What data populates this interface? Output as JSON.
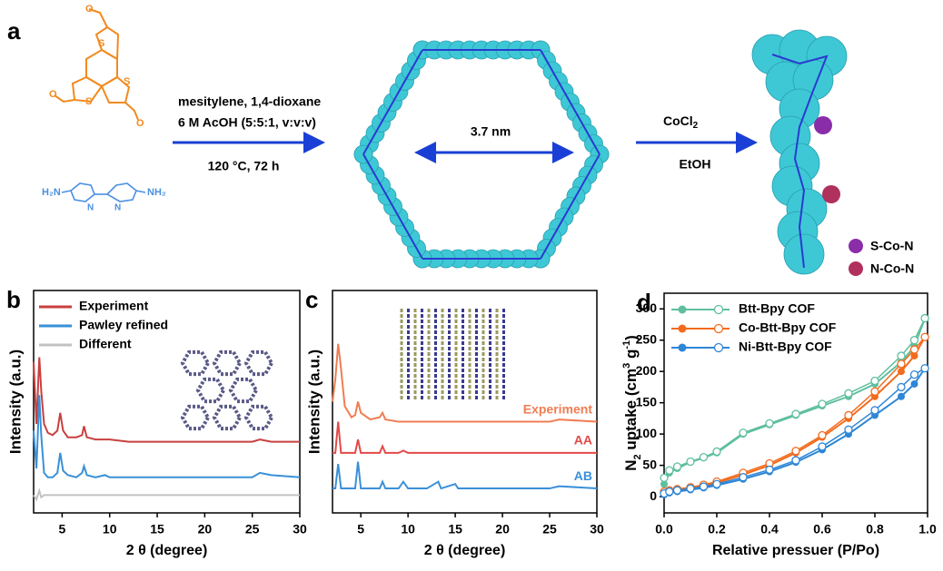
{
  "diagram": {
    "label": "a",
    "conditions": [
      "mesitylene, 1,4-dioxane",
      "6 M AcOH (5:5:1, v:v:v)",
      "120 °C, 72 h"
    ],
    "pore_size": "3.7 nm",
    "reagent": {
      "text": "CoCl",
      "sub": "2"
    },
    "solvent": "EtOH",
    "legend": [
      "S-Co-N",
      "N-Co-N"
    ],
    "aldehyde_atoms": [
      "O",
      "O",
      "O",
      "S",
      "S",
      "S"
    ],
    "amine_atoms": [
      "H₂N",
      "NH₂",
      "N",
      "N"
    ]
  },
  "chart_data": [
    {
      "type": "line",
      "label": "b",
      "x_label": "2 θ (degree)",
      "y_label": "Intensity (a.u.)",
      "x": [
        2,
        2.3,
        2.6,
        2.8,
        3.1,
        3.5,
        4,
        4.5,
        4.8,
        5.1,
        5.6,
        6.5,
        7.1,
        7.3,
        7.6,
        8.5,
        9.5,
        10,
        12,
        15,
        20,
        25,
        25.8,
        27,
        30
      ],
      "series": [
        {
          "name": "Experiment",
          "color": "#c8403e",
          "values": [
            68,
            40,
            70,
            55,
            40,
            36,
            35,
            37,
            45,
            37,
            34,
            34,
            35,
            39,
            34,
            33,
            33,
            33,
            32,
            32,
            32,
            32,
            33,
            32,
            32
          ]
        },
        {
          "name": "Pawley refined",
          "color": "#3a90d8",
          "values": [
            37,
            20,
            53,
            35,
            18,
            16,
            16,
            18,
            27,
            19,
            17,
            16,
            18,
            21,
            17,
            16,
            17,
            16,
            16,
            16,
            16,
            16,
            18,
            17,
            16
          ]
        },
        {
          "name": "Different",
          "color": "#c2c2c2",
          "values": [
            8,
            6,
            10,
            7,
            8,
            8,
            8,
            8,
            8,
            8,
            8,
            8,
            8,
            8,
            8,
            8,
            8,
            8,
            8,
            8,
            8,
            8,
            8,
            8,
            8
          ]
        }
      ],
      "xlim": [
        2,
        30
      ],
      "xticks": [
        5,
        10,
        15,
        20,
        25,
        30
      ],
      "ylim": [
        0,
        100
      ],
      "legend": "upper left"
    },
    {
      "type": "line",
      "label": "c",
      "x_label": "2 θ (degree)",
      "y_label": "Intensity (a.u.)",
      "x": [
        2,
        2.3,
        2.6,
        2.9,
        3.3,
        4,
        4.4,
        4.7,
        5,
        6,
        7,
        7.3,
        7.6,
        9,
        9.5,
        10,
        12,
        13.2,
        13.5,
        15,
        15.3,
        20,
        25,
        26,
        30
      ],
      "series": [
        {
          "name": "Experiment",
          "color": "#f07d52",
          "values": [
            50,
            60,
            76,
            65,
            48,
            43,
            44,
            50,
            45,
            42,
            43,
            45,
            42,
            41,
            41,
            41,
            41,
            41,
            41,
            41,
            41,
            41,
            41,
            42,
            41
          ]
        },
        {
          "name": "AA",
          "color": "#e24a48",
          "values": [
            27,
            27,
            41,
            27,
            27,
            27,
            27,
            33,
            27,
            27,
            27,
            30,
            27,
            27,
            28,
            27,
            27,
            27,
            27,
            27,
            27,
            27,
            27,
            27,
            27
          ]
        },
        {
          "name": "AB",
          "color": "#3a90d8",
          "values": [
            11,
            11,
            22,
            11,
            11,
            11,
            11,
            23,
            11,
            11,
            11,
            14,
            11,
            11,
            14,
            11,
            11,
            14,
            11,
            13,
            11,
            11,
            11,
            12,
            11
          ]
        }
      ],
      "xlim": [
        2,
        30
      ],
      "xticks": [
        5,
        10,
        15,
        20,
        25,
        30
      ],
      "ylim": [
        0,
        100
      ],
      "legend": "series end"
    },
    {
      "type": "isotherm",
      "label": "d",
      "x_label": "Relative pressuer (P/Po)",
      "y_label": [
        "N",
        "2",
        " uptake (cm",
        "3",
        " g",
        "-1",
        ")"
      ],
      "x": [
        0,
        0.02,
        0.05,
        0.1,
        0.15,
        0.2,
        0.3,
        0.4,
        0.5,
        0.6,
        0.7,
        0.8,
        0.9,
        0.95,
        0.99
      ],
      "series": [
        {
          "name": "Btt-Bpy COF",
          "color": "#5fbf9f",
          "values": [
            20,
            38,
            45,
            55,
            62,
            70,
            100,
            115,
            130,
            145,
            160,
            180,
            215,
            240,
            285
          ],
          "desorption_values": [
            30,
            42,
            48,
            56,
            63,
            72,
            102,
            117,
            132,
            148,
            165,
            185,
            225,
            250,
            285
          ]
        },
        {
          "name": "Co-Btt-Bpy COF",
          "color": "#f26b1d",
          "values": [
            5,
            8,
            10,
            13,
            17,
            22,
            35,
            50,
            70,
            95,
            125,
            160,
            200,
            225,
            255
          ],
          "desorption_values": [
            8,
            10,
            12,
            15,
            19,
            24,
            38,
            53,
            73,
            98,
            130,
            168,
            212,
            235,
            255
          ]
        },
        {
          "name": "Ni-Btt-Bpy COF",
          "color": "#2e86d6",
          "values": [
            3,
            6,
            8,
            11,
            14,
            18,
            28,
            40,
            55,
            75,
            100,
            130,
            160,
            180,
            205
          ],
          "desorption_values": [
            5,
            8,
            10,
            13,
            16,
            20,
            31,
            43,
            58,
            80,
            107,
            138,
            175,
            195,
            205
          ]
        }
      ],
      "xlim": [
        0,
        1
      ],
      "xticks": [
        {
          "value": 0,
          "label": "0.0"
        },
        0.2,
        0.4,
        0.6,
        0.8,
        {
          "value": 1,
          "label": "1.0"
        }
      ],
      "ylim": [
        -26,
        325
      ],
      "yticks": [
        0,
        50,
        100,
        150,
        200,
        250,
        300
      ],
      "legend": "upper left"
    }
  ]
}
